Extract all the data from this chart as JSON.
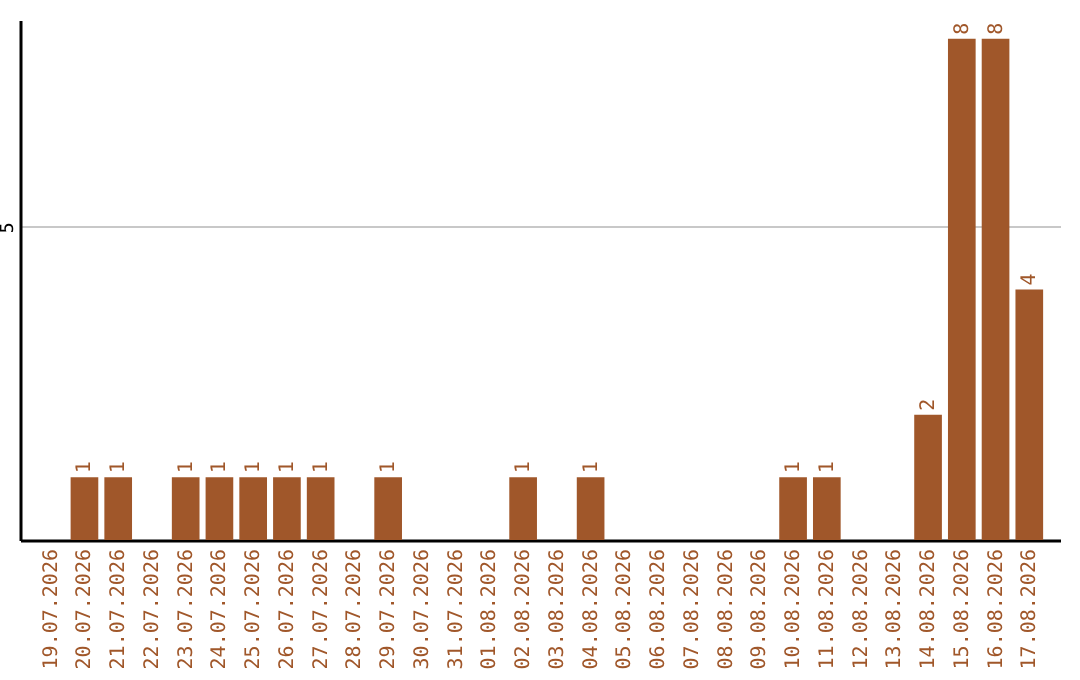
{
  "chart_data": {
    "type": "bar",
    "categories": [
      "19.07.2026",
      "20.07.2026",
      "21.07.2026",
      "22.07.2026",
      "23.07.2026",
      "24.07.2026",
      "25.07.2026",
      "26.07.2026",
      "27.07.2026",
      "28.07.2026",
      "29.07.2026",
      "30.07.2026",
      "31.07.2026",
      "01.08.2026",
      "02.08.2026",
      "03.08.2026",
      "04.08.2026",
      "05.08.2026",
      "06.08.2026",
      "07.08.2026",
      "08.08.2026",
      "09.08.2026",
      "10.08.2026",
      "11.08.2026",
      "12.08.2026",
      "13.08.2026",
      "14.08.2026",
      "15.08.2026",
      "16.08.2026",
      "17.08.2026"
    ],
    "values": [
      null,
      1,
      1,
      null,
      1,
      1,
      1,
      1,
      1,
      null,
      1,
      null,
      null,
      null,
      1,
      null,
      1,
      null,
      null,
      null,
      null,
      null,
      1,
      1,
      null,
      null,
      2,
      8,
      8,
      4
    ],
    "color": "#a0572a",
    "ylim": [
      0,
      8.3
    ],
    "yticks": [
      5
    ],
    "grid": "y",
    "data_labels": true
  }
}
